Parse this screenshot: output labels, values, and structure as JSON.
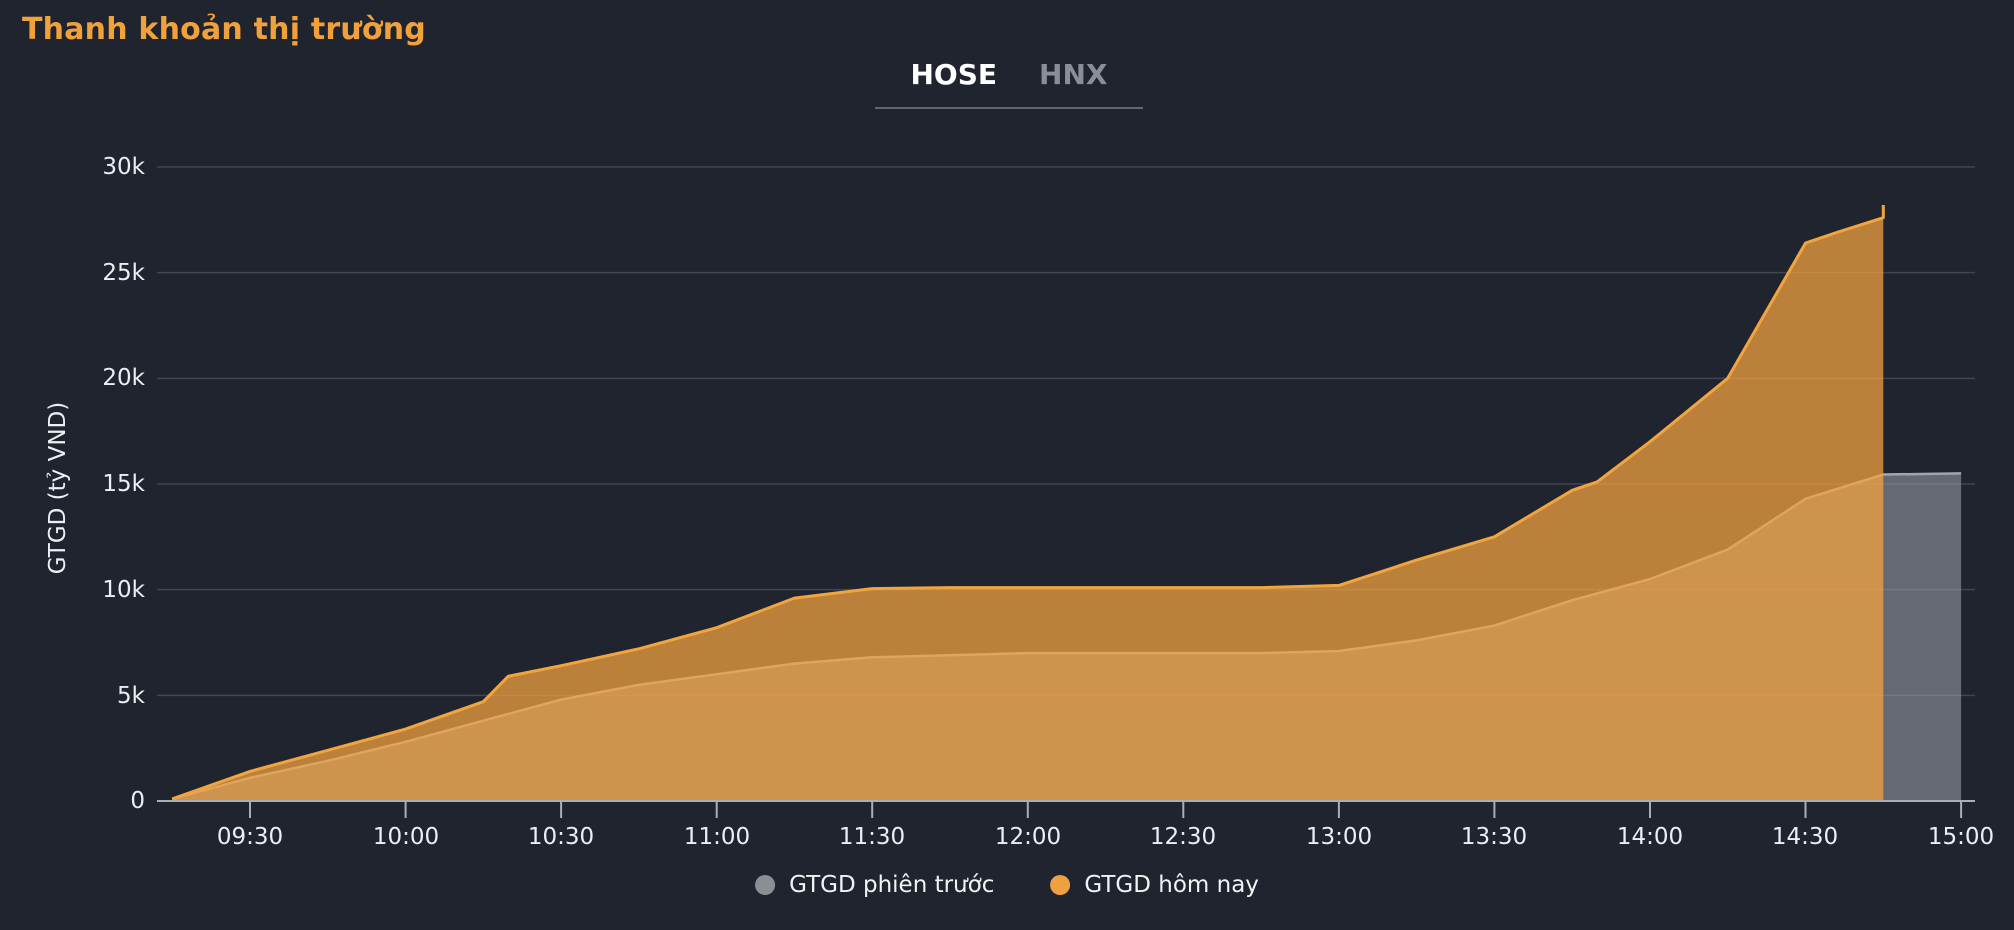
{
  "title": "Thanh khoản thị trường",
  "tabs": [
    {
      "label": "HOSE",
      "active": true
    },
    {
      "label": "HNX",
      "active": false
    }
  ],
  "colors": {
    "background": "#20242e",
    "title": "#f1a13c",
    "grid": "#41454f",
    "axis": "#a9afb9",
    "text": "#eceef2",
    "tab_active": "#ffffff",
    "tab_inactive": "#8b8e95",
    "today_stroke": "#f2a43f",
    "today_fill": "rgba(246,164,62,0.72)",
    "prev_stroke": "#a2a5ac",
    "prev_fill": "rgba(158,162,170,0.55)",
    "legend_prev_dot": "#8b8e94",
    "legend_today_dot": "#efa041"
  },
  "legend": [
    {
      "label": "GTGD phiên trước",
      "color": "#8b8e94"
    },
    {
      "label": "GTGD hôm nay",
      "color": "#efa041"
    }
  ],
  "chart_data": {
    "type": "area",
    "title": "Thanh khoản thị trường",
    "xlabel": "",
    "ylabel": "GTGD (tỷ VND)",
    "ylim": [
      0,
      30000
    ],
    "ytick_step": 5000,
    "yticks": [
      "0",
      "5k",
      "10k",
      "15k",
      "20k",
      "25k",
      "30k"
    ],
    "xticks": [
      "09:30",
      "10:00",
      "10:30",
      "11:00",
      "11:30",
      "12:00",
      "12:30",
      "13:00",
      "13:30",
      "14:00",
      "14:30",
      "15:00"
    ],
    "x_hours_range": [
      9.25,
      15.0
    ],
    "grid": true,
    "legend_position": "bottom",
    "series": [
      {
        "name": "GTGD phiên trước",
        "color": "#8b8e94",
        "x_hours": [
          9.25,
          9.5,
          9.75,
          10.0,
          10.25,
          10.5,
          10.75,
          11.0,
          11.25,
          11.5,
          11.75,
          12.0,
          12.25,
          12.5,
          12.75,
          13.0,
          13.25,
          13.5,
          13.75,
          14.0,
          14.25,
          14.5,
          14.75,
          15.0
        ],
        "values": [
          100,
          1100,
          1900,
          2800,
          3800,
          4800,
          5500,
          6000,
          6500,
          6800,
          6900,
          7000,
          7000,
          7000,
          7000,
          7100,
          7600,
          8300,
          9500,
          10500,
          11900,
          14300,
          15450,
          15500
        ]
      },
      {
        "name": "GTGD hôm nay",
        "color": "#efa041",
        "x_hours": [
          9.25,
          9.5,
          9.75,
          10.0,
          10.25,
          10.33,
          10.5,
          10.75,
          11.0,
          11.25,
          11.5,
          11.75,
          12.0,
          12.25,
          12.5,
          12.75,
          13.0,
          13.25,
          13.5,
          13.75,
          13.83,
          14.0,
          14.25,
          14.5,
          14.6,
          14.75
        ],
        "values": [
          100,
          1400,
          2400,
          3400,
          4700,
          5900,
          6400,
          7200,
          8200,
          9600,
          10050,
          10100,
          10100,
          10100,
          10100,
          10100,
          10200,
          11400,
          12500,
          14700,
          15100,
          17000,
          20000,
          26400,
          26900,
          27600
        ],
        "last_tick_spike": 28200
      }
    ]
  }
}
